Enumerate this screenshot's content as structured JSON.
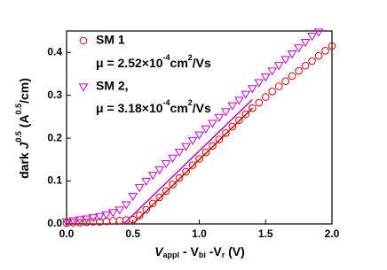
{
  "chart_data": {
    "type": "scatter",
    "xlabel": [
      "V",
      "appl",
      " - V",
      "bi",
      " -V",
      "r",
      " (V)"
    ],
    "ylabel": [
      "dark ",
      "J",
      "0.5",
      " (A",
      "0.5",
      "/cm)"
    ],
    "xlim": [
      0,
      2.0
    ],
    "ylim": [
      0,
      0.45
    ],
    "xticks": [
      {
        "value": 0,
        "label": "0.0"
      },
      {
        "value": 0.5,
        "label": "0.5"
      },
      {
        "value": 1.0,
        "label": "1.0"
      },
      {
        "value": 1.5,
        "label": "1.5"
      },
      {
        "value": 2.0,
        "label": "2.0"
      }
    ],
    "yticks": [
      {
        "value": 0,
        "label": "0.0"
      },
      {
        "value": 0.1,
        "label": "0.1"
      },
      {
        "value": 0.2,
        "label": "0.2"
      },
      {
        "value": 0.3,
        "label": "0.3"
      },
      {
        "value": 0.4,
        "label": "0.4"
      }
    ],
    "series": [
      {
        "name": "SM 1",
        "color": "#e00000",
        "marker": "circle",
        "mobility": [
          "μ = 2.52×10",
          "-4",
          "cm",
          "2",
          "/Vs"
        ],
        "x": [
          0,
          0.05,
          0.1,
          0.15,
          0.2,
          0.25,
          0.3,
          0.35,
          0.4,
          0.45,
          0.5,
          0.55,
          0.6,
          0.65,
          0.7,
          0.75,
          0.8,
          0.85,
          0.9,
          0.95,
          1.0,
          1.05,
          1.1,
          1.15,
          1.2,
          1.25,
          1.3,
          1.35,
          1.4,
          1.45,
          1.5,
          1.55,
          1.6,
          1.65,
          1.7,
          1.75,
          1.8,
          1.85,
          1.9,
          1.95,
          2.0
        ],
        "values": [
          0.002,
          0.003,
          0.003,
          0.004,
          0.005,
          0.005,
          0.006,
          0.007,
          0.008,
          0.009,
          0.01,
          0.02,
          0.033,
          0.048,
          0.062,
          0.077,
          0.092,
          0.107,
          0.122,
          0.137,
          0.152,
          0.167,
          0.182,
          0.197,
          0.212,
          0.227,
          0.242,
          0.256,
          0.27,
          0.283,
          0.296,
          0.309,
          0.321,
          0.333,
          0.345,
          0.357,
          0.369,
          0.38,
          0.392,
          0.404,
          0.415
        ]
      },
      {
        "name": "SM 2,",
        "color": "#cc00cc",
        "marker": "triangle-down",
        "mobility": [
          "μ = 3.18×10",
          "-4",
          "cm",
          "2",
          "/Vs"
        ],
        "x": [
          0,
          0.05,
          0.1,
          0.15,
          0.2,
          0.25,
          0.3,
          0.35,
          0.4,
          0.45,
          0.5,
          0.55,
          0.6,
          0.65,
          0.7,
          0.75,
          0.8,
          0.85,
          0.9,
          0.95,
          1.0,
          1.05,
          1.1,
          1.15,
          1.2,
          1.25,
          1.3,
          1.35,
          1.4,
          1.45,
          1.5,
          1.55,
          1.6,
          1.65,
          1.7,
          1.75,
          1.8,
          1.85,
          1.9
        ],
        "values": [
          0.005,
          0.008,
          0.01,
          0.012,
          0.015,
          0.018,
          0.022,
          0.027,
          0.033,
          0.045,
          0.065,
          0.085,
          0.1,
          0.114,
          0.127,
          0.141,
          0.154,
          0.168,
          0.181,
          0.195,
          0.208,
          0.222,
          0.235,
          0.249,
          0.262,
          0.276,
          0.289,
          0.303,
          0.316,
          0.33,
          0.343,
          0.357,
          0.37,
          0.384,
          0.397,
          0.411,
          0.424,
          0.438,
          0.448
        ]
      }
    ],
    "fits": [
      {
        "color": "#e00000",
        "x": [
          0.5,
          1.4
        ],
        "values": [
          0,
          0.27
        ]
      },
      {
        "color": "#cc00cc",
        "x": [
          0.43,
          1.4
        ],
        "values": [
          0,
          0.29
        ]
      }
    ]
  }
}
